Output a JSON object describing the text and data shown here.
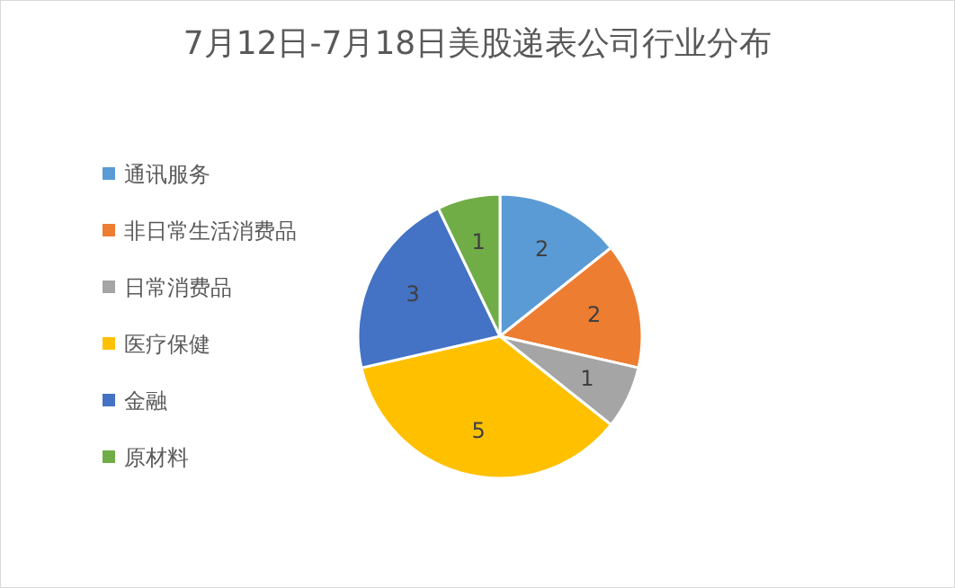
{
  "chart_data": {
    "type": "pie",
    "title": "7月12日-7月18日美股递表公司行业分布",
    "categories": [
      "通讯服务",
      "非日常生活消费品",
      "日常消费品",
      "医疗保健",
      "金融",
      "原材料"
    ],
    "values": [
      2,
      2,
      1,
      5,
      3,
      1
    ],
    "colors": [
      "#5b9bd5",
      "#ed7d31",
      "#a5a5a5",
      "#ffc000",
      "#4472c4",
      "#70ad47"
    ],
    "data_labels": true,
    "legend": "left"
  }
}
